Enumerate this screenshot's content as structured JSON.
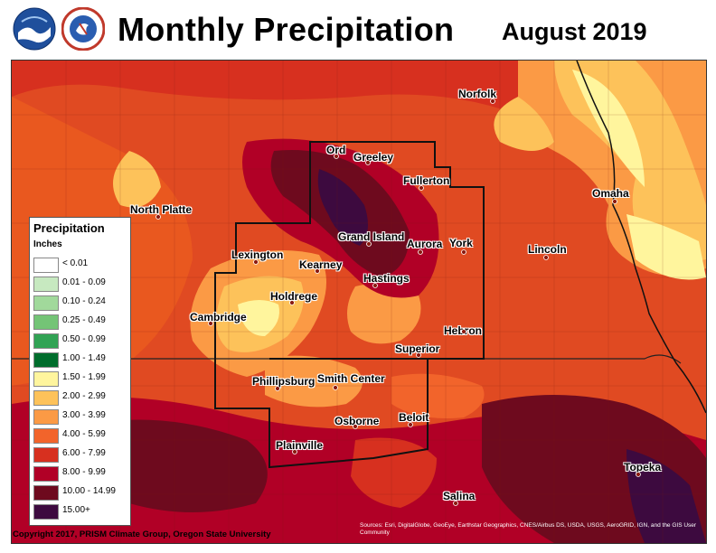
{
  "header": {
    "title": "Monthly Precipitation",
    "period": "August 2019",
    "logos": [
      "noaa-logo",
      "national-weather-service-logo"
    ]
  },
  "legend": {
    "title": "Precipitation",
    "units": "Inches",
    "items": [
      {
        "label": "< 0.01",
        "color": "#ffffff"
      },
      {
        "label": "0.01 - 0.09",
        "color": "#c7e9c0"
      },
      {
        "label": "0.10 - 0.24",
        "color": "#a1d99b"
      },
      {
        "label": "0.25 - 0.49",
        "color": "#74c476"
      },
      {
        "label": "0.50 - 0.99",
        "color": "#31a354"
      },
      {
        "label": "1.00 - 1.49",
        "color": "#006d2c"
      },
      {
        "label": "1.50 - 1.99",
        "color": "#fff59d"
      },
      {
        "label": "2.00 - 2.99",
        "color": "#fdc25a"
      },
      {
        "label": "3.00 - 3.99",
        "color": "#fb9a45"
      },
      {
        "label": "4.00 - 5.99",
        "color": "#f2642b"
      },
      {
        "label": "6.00 - 7.99",
        "color": "#d7301f"
      },
      {
        "label": "8.00 - 9.99",
        "color": "#b10026"
      },
      {
        "label": "10.00 - 14.99",
        "color": "#6e0a1e"
      },
      {
        "label": "15.00+",
        "color": "#3d0a3f"
      }
    ]
  },
  "cities": [
    {
      "name": "Norfolk"
    },
    {
      "name": "Ord"
    },
    {
      "name": "Greeley"
    },
    {
      "name": "Fullerton"
    },
    {
      "name": "Omaha"
    },
    {
      "name": "North Platte"
    },
    {
      "name": "Grand Island"
    },
    {
      "name": "Aurora"
    },
    {
      "name": "York"
    },
    {
      "name": "Lincoln"
    },
    {
      "name": "Lexington"
    },
    {
      "name": "Kearney"
    },
    {
      "name": "Hastings"
    },
    {
      "name": "Holdrege"
    },
    {
      "name": "Cambridge"
    },
    {
      "name": "Hebron"
    },
    {
      "name": "Superior"
    },
    {
      "name": "Phillipsburg"
    },
    {
      "name": "Smith Center"
    },
    {
      "name": "Beloit"
    },
    {
      "name": "Osborne"
    },
    {
      "name": "Plainville"
    },
    {
      "name": "Topeka"
    },
    {
      "name": "Salina"
    }
  ],
  "footer": {
    "credit": "Copyright 2017, PRISM Climate Group, Oregon State University",
    "sources": "Sources: Esri, DigitalGlobe, GeoEye, Earthstar Geographics, CNES/Airbus DS, USDA, USGS, AeroGRID, IGN, and the GIS User Community"
  }
}
